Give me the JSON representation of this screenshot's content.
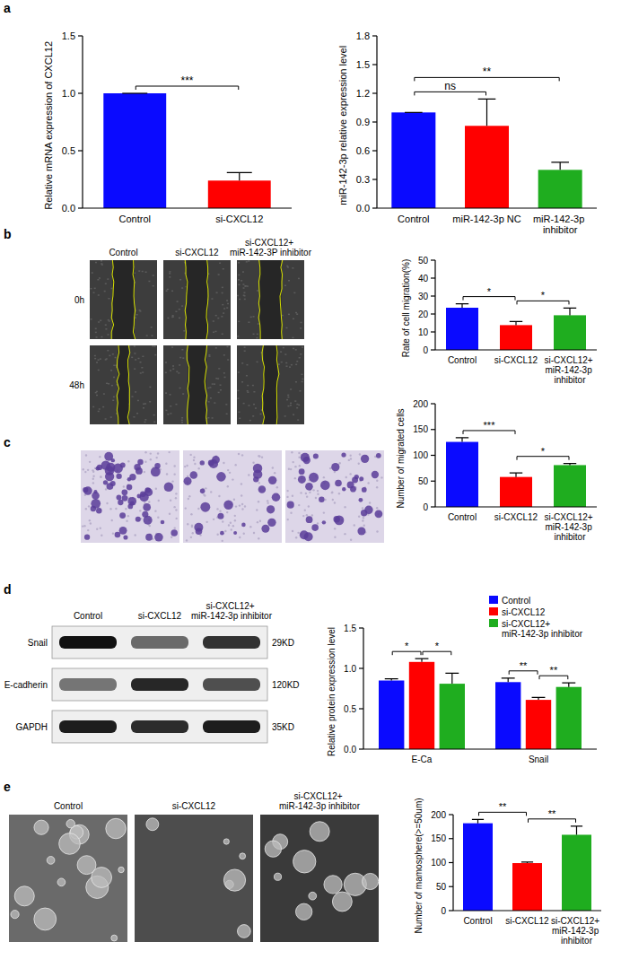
{
  "figure": {
    "panel_letters": [
      "a",
      "b",
      "c",
      "d",
      "e"
    ],
    "wound_healing": {
      "columns": [
        "Control",
        "si-CXCL12",
        "si-CXCL12+ miR-142-3P inhibitor"
      ],
      "rows": [
        "0h",
        "48h"
      ]
    },
    "western_blot": {
      "columns": [
        "Control",
        "si-CXCL12",
        "si-CXCL12+ miR-142-3p inhibitor"
      ],
      "rows": [
        {
          "protein": "Snail",
          "size": "29KD"
        },
        {
          "protein": "E-cadherin",
          "size": "120KD"
        },
        {
          "protein": "GAPDH",
          "size": "35KD"
        }
      ]
    },
    "mammosphere": {
      "columns": [
        "Control",
        "si-CXCL12",
        "si-CXCL12+ miR-142-3p inhibitor"
      ]
    }
  },
  "chart_data": [
    {
      "type": "bar",
      "y_label": "Relative mRNA expression of CXCL12",
      "categories": [
        "Control",
        "si-CXCL12"
      ],
      "values": [
        1.0,
        0.24
      ],
      "errors": [
        0,
        0.07
      ],
      "colors": [
        "#0a0aff",
        "#ff0000"
      ],
      "ylim": [
        0,
        1.5
      ],
      "yticks": [
        {
          "value": 0,
          "label": "0.0"
        },
        {
          "value": 0.5,
          "label": "0.5"
        },
        {
          "value": 1,
          "label": "1.0"
        },
        {
          "value": 1.5,
          "label": "1.5"
        }
      ],
      "annotations": [
        {
          "text": "***",
          "between": [
            "Control",
            "si-CXCL12"
          ]
        }
      ]
    },
    {
      "type": "bar",
      "y_label": "miR-142-3p relative expression level",
      "categories": [
        "Control",
        "miR-142-3p NC",
        "miR-142-3p inhibitor"
      ],
      "values": [
        1.0,
        0.86,
        0.4
      ],
      "errors": [
        0,
        0.28,
        0.08
      ],
      "colors": [
        "#0a0aff",
        "#ff0000",
        "#1fad1f"
      ],
      "ylim": [
        0,
        1.8
      ],
      "yticks": [
        {
          "value": 0,
          "label": "0.0"
        },
        {
          "value": 0.3,
          "label": "0.3"
        },
        {
          "value": 0.6,
          "label": "0.6"
        },
        {
          "value": 0.9,
          "label": "0.9"
        },
        {
          "value": 1.2,
          "label": "1.2"
        },
        {
          "value": 1.5,
          "label": "1.5"
        },
        {
          "value": 1.8,
          "label": "1.8"
        }
      ],
      "annotations": [
        {
          "text": "ns",
          "between": [
            "Control",
            "miR-142-3p NC"
          ]
        },
        {
          "text": "**",
          "between": [
            "Control",
            "miR-142-3p inhibitor"
          ]
        }
      ]
    },
    {
      "type": "bar",
      "y_label": "Rate of cell migration(%)",
      "categories": [
        "Control",
        "si-CXCL12",
        "si-CXCL12+ miR-142-3p inhibitor"
      ],
      "values": [
        23.5,
        13.8,
        19.3
      ],
      "errors": [
        2.2,
        2.0,
        4.0
      ],
      "colors": [
        "#0a0aff",
        "#ff0000",
        "#1fad1f"
      ],
      "ylim": [
        0,
        50
      ],
      "yticks": [
        0,
        10,
        20,
        30,
        40,
        50
      ],
      "annotations": [
        {
          "text": "*",
          "between": [
            "Control",
            "si-CXCL12"
          ]
        },
        {
          "text": "*",
          "between": [
            "si-CXCL12",
            "si-CXCL12+ miR-142-3p inhibitor"
          ]
        }
      ]
    },
    {
      "type": "bar",
      "y_label": "Number of migrated cells",
      "categories": [
        "Control",
        "si-CXCL12",
        "si-CXCL12+ miR-142-3p inhibitor"
      ],
      "values": [
        126,
        58,
        81
      ],
      "errors": [
        8,
        8,
        3
      ],
      "colors": [
        "#0a0aff",
        "#ff0000",
        "#1fad1f"
      ],
      "ylim": [
        0,
        200
      ],
      "yticks": [
        0,
        50,
        100,
        150,
        200
      ],
      "annotations": [
        {
          "text": "***",
          "between": [
            "Control",
            "si-CXCL12"
          ]
        },
        {
          "text": "*",
          "between": [
            "si-CXCL12",
            "si-CXCL12+ miR-142-3p inhibitor"
          ]
        }
      ]
    },
    {
      "type": "bar",
      "y_label": "Relative protein expression level",
      "categories": [
        "E-Ca",
        "Snail"
      ],
      "series": [
        {
          "name": "Control",
          "color": "#0a0aff",
          "values": [
            0.85,
            0.83
          ],
          "errors": [
            0.02,
            0.05
          ]
        },
        {
          "name": "si-CXCL12",
          "color": "#ff0000",
          "values": [
            1.08,
            0.61
          ],
          "errors": [
            0.04,
            0.03
          ]
        },
        {
          "name": "si-CXCL12+ miR-142-3p inhibitor",
          "color": "#1fad1f",
          "values": [
            0.81,
            0.77
          ],
          "errors": [
            0.13,
            0.05
          ]
        }
      ],
      "legend": "top-right",
      "ylim": [
        0,
        1.5
      ],
      "yticks": [
        {
          "value": 0,
          "label": "0.0"
        },
        {
          "value": 0.5,
          "label": "0.5"
        },
        {
          "value": 1,
          "label": "1.0"
        },
        {
          "value": 1.5,
          "label": "1.5"
        }
      ],
      "annotations": [
        {
          "text": "*",
          "category": "E-Ca",
          "between": [
            "Control",
            "si-CXCL12"
          ]
        },
        {
          "text": "*",
          "category": "E-Ca",
          "between": [
            "si-CXCL12",
            "si-CXCL12+ miR-142-3p inhibitor"
          ]
        },
        {
          "text": "**",
          "category": "Snail",
          "between": [
            "Control",
            "si-CXCL12"
          ]
        },
        {
          "text": "**",
          "category": "Snail",
          "between": [
            "si-CXCL12",
            "si-CXCL12+ miR-142-3p inhibitor"
          ]
        }
      ]
    },
    {
      "type": "bar",
      "y_label": "Number of mamosphere(>=50um)",
      "categories": [
        "Control",
        "si-CXCL12",
        "si-CXCL12+ miR-142-3p inhibitor"
      ],
      "values": [
        182,
        99,
        158
      ],
      "errors": [
        8,
        2,
        18
      ],
      "colors": [
        "#0a0aff",
        "#ff0000",
        "#1fad1f"
      ],
      "ylim": [
        0,
        200
      ],
      "yticks": [
        0,
        50,
        100,
        150,
        200
      ],
      "annotations": [
        {
          "text": "**",
          "between": [
            "Control",
            "si-CXCL12"
          ]
        },
        {
          "text": "**",
          "between": [
            "si-CXCL12",
            "si-CXCL12+ miR-142-3p inhibitor"
          ]
        }
      ]
    }
  ]
}
